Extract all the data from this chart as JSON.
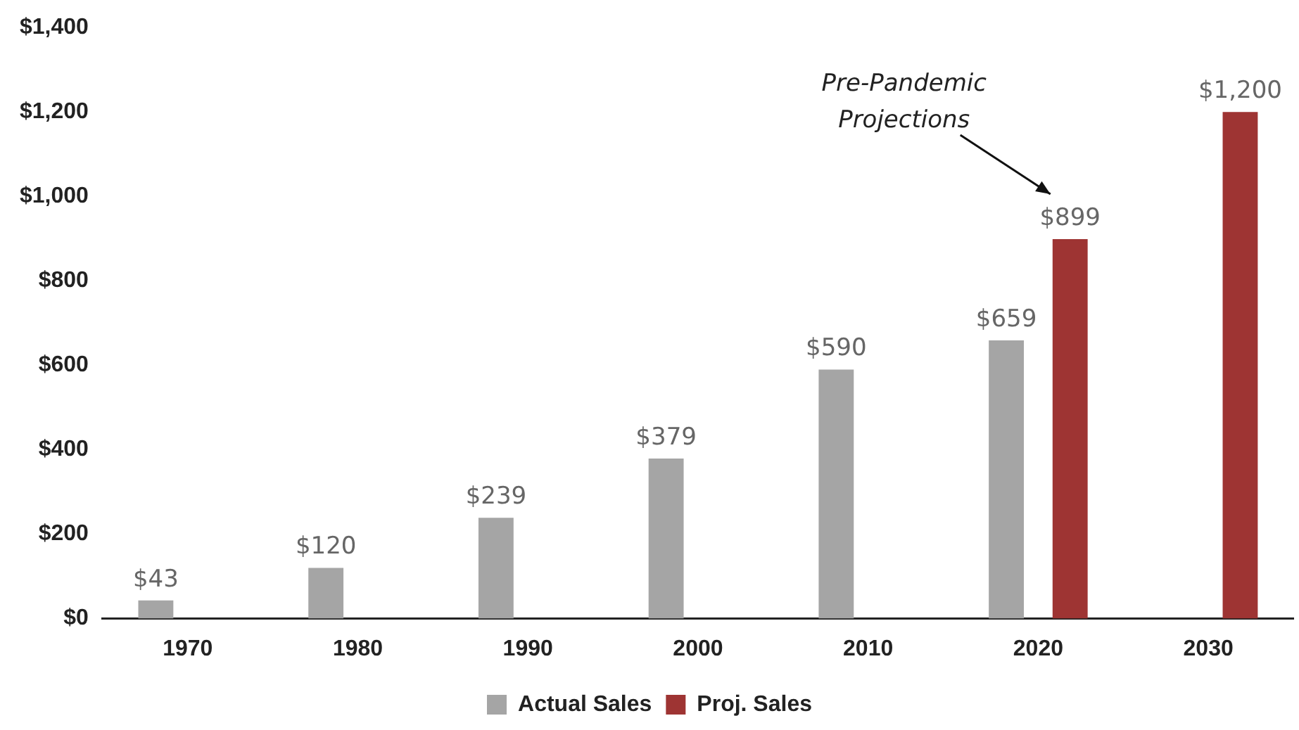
{
  "chart_data": {
    "type": "bar",
    "categories": [
      "1970",
      "1980",
      "1990",
      "2000",
      "2010",
      "2020",
      "2030"
    ],
    "series": [
      {
        "name": "Actual Sales",
        "color": "#a5a5a5",
        "values": [
          43,
          120,
          239,
          379,
          590,
          659,
          null
        ]
      },
      {
        "name": "Proj. Sales",
        "color": "#9e3433",
        "values": [
          null,
          null,
          null,
          null,
          null,
          899,
          1200
        ]
      }
    ],
    "ylim": [
      0,
      1400
    ],
    "yticks": [
      {
        "value": 0,
        "label": "$0"
      },
      {
        "value": 200,
        "label": "$200"
      },
      {
        "value": 400,
        "label": "$400"
      },
      {
        "value": 600,
        "label": "$600"
      },
      {
        "value": 800,
        "label": "$800"
      },
      {
        "value": 1000,
        "label": "$1,000"
      },
      {
        "value": 1200,
        "label": "$1,200"
      },
      {
        "value": 1400,
        "label": "$1,400"
      }
    ],
    "value_labels": [
      [
        "$43",
        "$120",
        "$239",
        "$379",
        "$590",
        "$659",
        null
      ],
      [
        null,
        null,
        null,
        null,
        null,
        "$899",
        "$1,200"
      ]
    ],
    "annotations": [
      "Pre-Pandemic Projections"
    ],
    "grid": false,
    "legend": "bottom"
  }
}
